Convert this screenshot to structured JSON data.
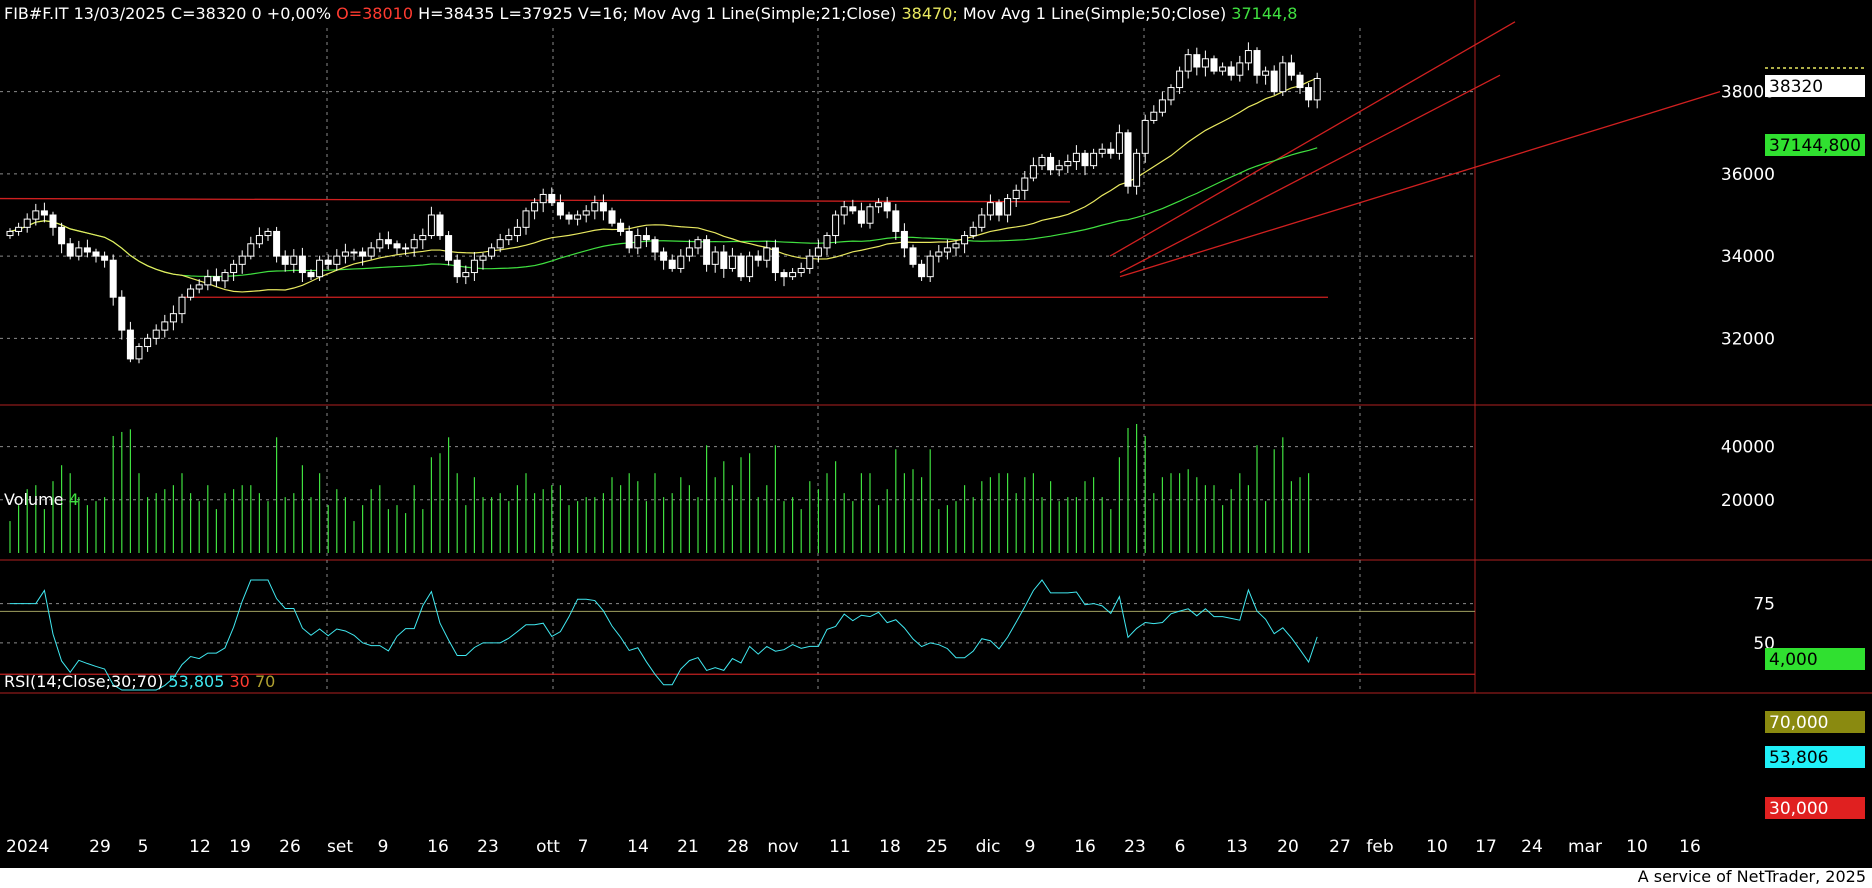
{
  "header": {
    "symbol": "FIB#F.IT",
    "date": "13/03/2025",
    "close_label": "C=38320",
    "change": "0",
    "change_pct": "+0,00%",
    "open_label": "O=38010",
    "high_label": "H=38435",
    "low_label": "L=37925",
    "volume_label": "V=16;",
    "ma21_label": "Mov Avg 1 Line(Simple;21;Close)",
    "ma21_value": "38470;",
    "ma50_label": "Mov Avg 1 Line(Simple;50;Close)",
    "ma50_value": "37144,8"
  },
  "volume_panel": {
    "label": "Volume",
    "value": "4"
  },
  "rsi_panel": {
    "label": "RSI(14;Close;30;70)",
    "value": "53,805",
    "low": "30",
    "high": "70"
  },
  "price_axis": {
    "ticks": [
      "38000",
      "36000",
      "34000",
      "32000"
    ],
    "last_close_tag": "38320",
    "ma50_tag": "37144,800"
  },
  "volume_axis": {
    "ticks": [
      "40000",
      "20000"
    ],
    "last_tag": "4,000"
  },
  "rsi_axis": {
    "ticks": [
      "75",
      "50"
    ],
    "tag70": "70,000",
    "tag_rsi": "53,806",
    "tag30": "30,000"
  },
  "x_axis": {
    "labels": [
      "2024",
      "29",
      "5",
      "12",
      "19",
      "26",
      "set",
      "9",
      "16",
      "23",
      "ott",
      "7",
      "14",
      "21",
      "28",
      "nov",
      "11",
      "18",
      "25",
      "dic",
      "9",
      "16",
      "23",
      "6",
      "13",
      "20",
      "27",
      "feb",
      "10",
      "17",
      "24",
      "mar",
      "10",
      "16"
    ]
  },
  "footer": {
    "credit": "A service of NetTrader, 2025"
  },
  "colors": {
    "background": "#000000",
    "candle": "#ffffff",
    "ma21": "#e8e860",
    "ma50": "#40e040",
    "channel": "#d02020",
    "volume": "#40e040",
    "rsi": "#40e8f0",
    "grid": "#8a8a8a",
    "axis_panel": "#000000"
  },
  "chart_data": {
    "type": "candlestick",
    "x_range": [
      "2024-07-22",
      "2025-03-13"
    ],
    "price_ylim": [
      30500,
      39500
    ],
    "closes": [
      34600,
      34700,
      34900,
      35100,
      35000,
      34700,
      34300,
      34000,
      34200,
      34100,
      34000,
      33900,
      33000,
      32200,
      31500,
      31800,
      32000,
      32200,
      32400,
      32600,
      33000,
      33200,
      33300,
      33500,
      33400,
      33600,
      33800,
      34000,
      34300,
      34500,
      34600,
      34000,
      33800,
      34000,
      33600,
      33500,
      33900,
      33800,
      34000,
      34100,
      34100,
      34000,
      34200,
      34400,
      34300,
      34200,
      34200,
      34400,
      34500,
      35000,
      34500,
      33900,
      33500,
      33600,
      33900,
      34000,
      34200,
      34400,
      34500,
      34700,
      35100,
      35300,
      35500,
      35300,
      35000,
      34900,
      35000,
      35100,
      35300,
      35100,
      34800,
      34600,
      34200,
      34500,
      34400,
      34100,
      33900,
      33700,
      34000,
      34200,
      34400,
      33800,
      34100,
      33700,
      34000,
      33500,
      34000,
      33900,
      34200,
      33600,
      33500,
      33600,
      33700,
      34000,
      34200,
      34500,
      35000,
      35200,
      35100,
      34800,
      35200,
      35300,
      35100,
      34600,
      34200,
      33800,
      33500,
      34000,
      34100,
      34200,
      34300,
      34500,
      34700,
      35000,
      35300,
      35000,
      35400,
      35600,
      35900,
      36200,
      36400,
      36100,
      36200,
      36300,
      36500,
      36200,
      36500,
      36600,
      36500,
      37000,
      35700,
      36500,
      37300,
      37500,
      37800,
      38100,
      38500,
      38900,
      38600,
      38800,
      38500,
      38600,
      38400,
      38700,
      39000,
      38400,
      38500,
      38000,
      38700,
      38400,
      38100,
      37800,
      38320
    ],
    "ma21_last": 38470,
    "ma50_last": 37144.8,
    "volume_ylim": [
      0,
      50000
    ],
    "volume_last": 4,
    "rsi_ylim": [
      20,
      90
    ],
    "rsi_last": 53.805,
    "rsi_levels": [
      30,
      70
    ],
    "support_level": 33000,
    "resistance_level": 35400
  }
}
